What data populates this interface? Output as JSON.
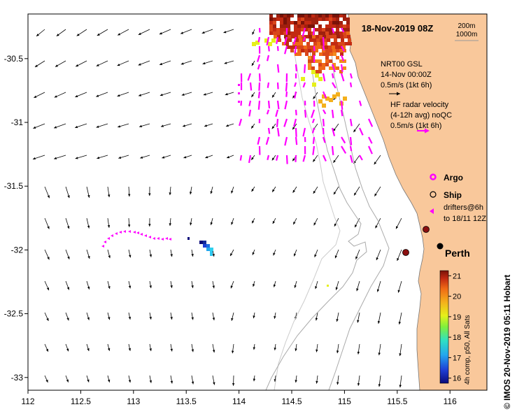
{
  "map": {
    "title": "18-Nov-2019 08Z",
    "lon_ticks": [
      "112",
      "112.5",
      "113",
      "113.5",
      "114",
      "114.5",
      "115",
      "115.5",
      "116"
    ],
    "lat_ticks": [
      "-30.5",
      "-31",
      "-31.5",
      "-32",
      "-32.5",
      "-33"
    ],
    "lon_range": [
      112,
      116.35
    ],
    "lat_range": [
      -30.15,
      -33.1
    ],
    "bathy_labels": [
      "200m",
      "1000m"
    ],
    "colors": {
      "land": "#f9c89b",
      "contour_200": "#aaaaaa",
      "contour_1000": "#cccccc",
      "argo": "#ff00ff",
      "drifter": "#ff00ff",
      "radar_arrow": "#ff00ff"
    }
  },
  "legend": {
    "model_name": "NRT00 GSL",
    "model_time": "14-Nov 00:00Z",
    "model_scale": "0.5m/s (1kt 6h)",
    "radar_line1": "HF radar velocity",
    "radar_line2": "(4-12h avg) noQC",
    "radar_scale": "0.5m/s (1kt 6h)",
    "argo_label": "Argo",
    "ship_label": "Ship",
    "drifters_line1": "drifters@6h",
    "drifters_line2": "to 18/11 12Z"
  },
  "city": {
    "name": "Perth",
    "lon": 115.86,
    "lat": -31.95
  },
  "markers": [
    {
      "type": "station",
      "lon": 115.74,
      "lat": -31.81
    },
    {
      "type": "station",
      "lon": 115.54,
      "lat": -32.0
    }
  ],
  "colorbar": {
    "ticks": [
      "21",
      "20",
      "19",
      "18",
      "17",
      "16"
    ],
    "min": 15.75,
    "max": 21.25,
    "caption": "4h comp, p50, All Sats"
  },
  "credit": "© IMOS 20-Nov-2019 05:11 Hobart"
}
